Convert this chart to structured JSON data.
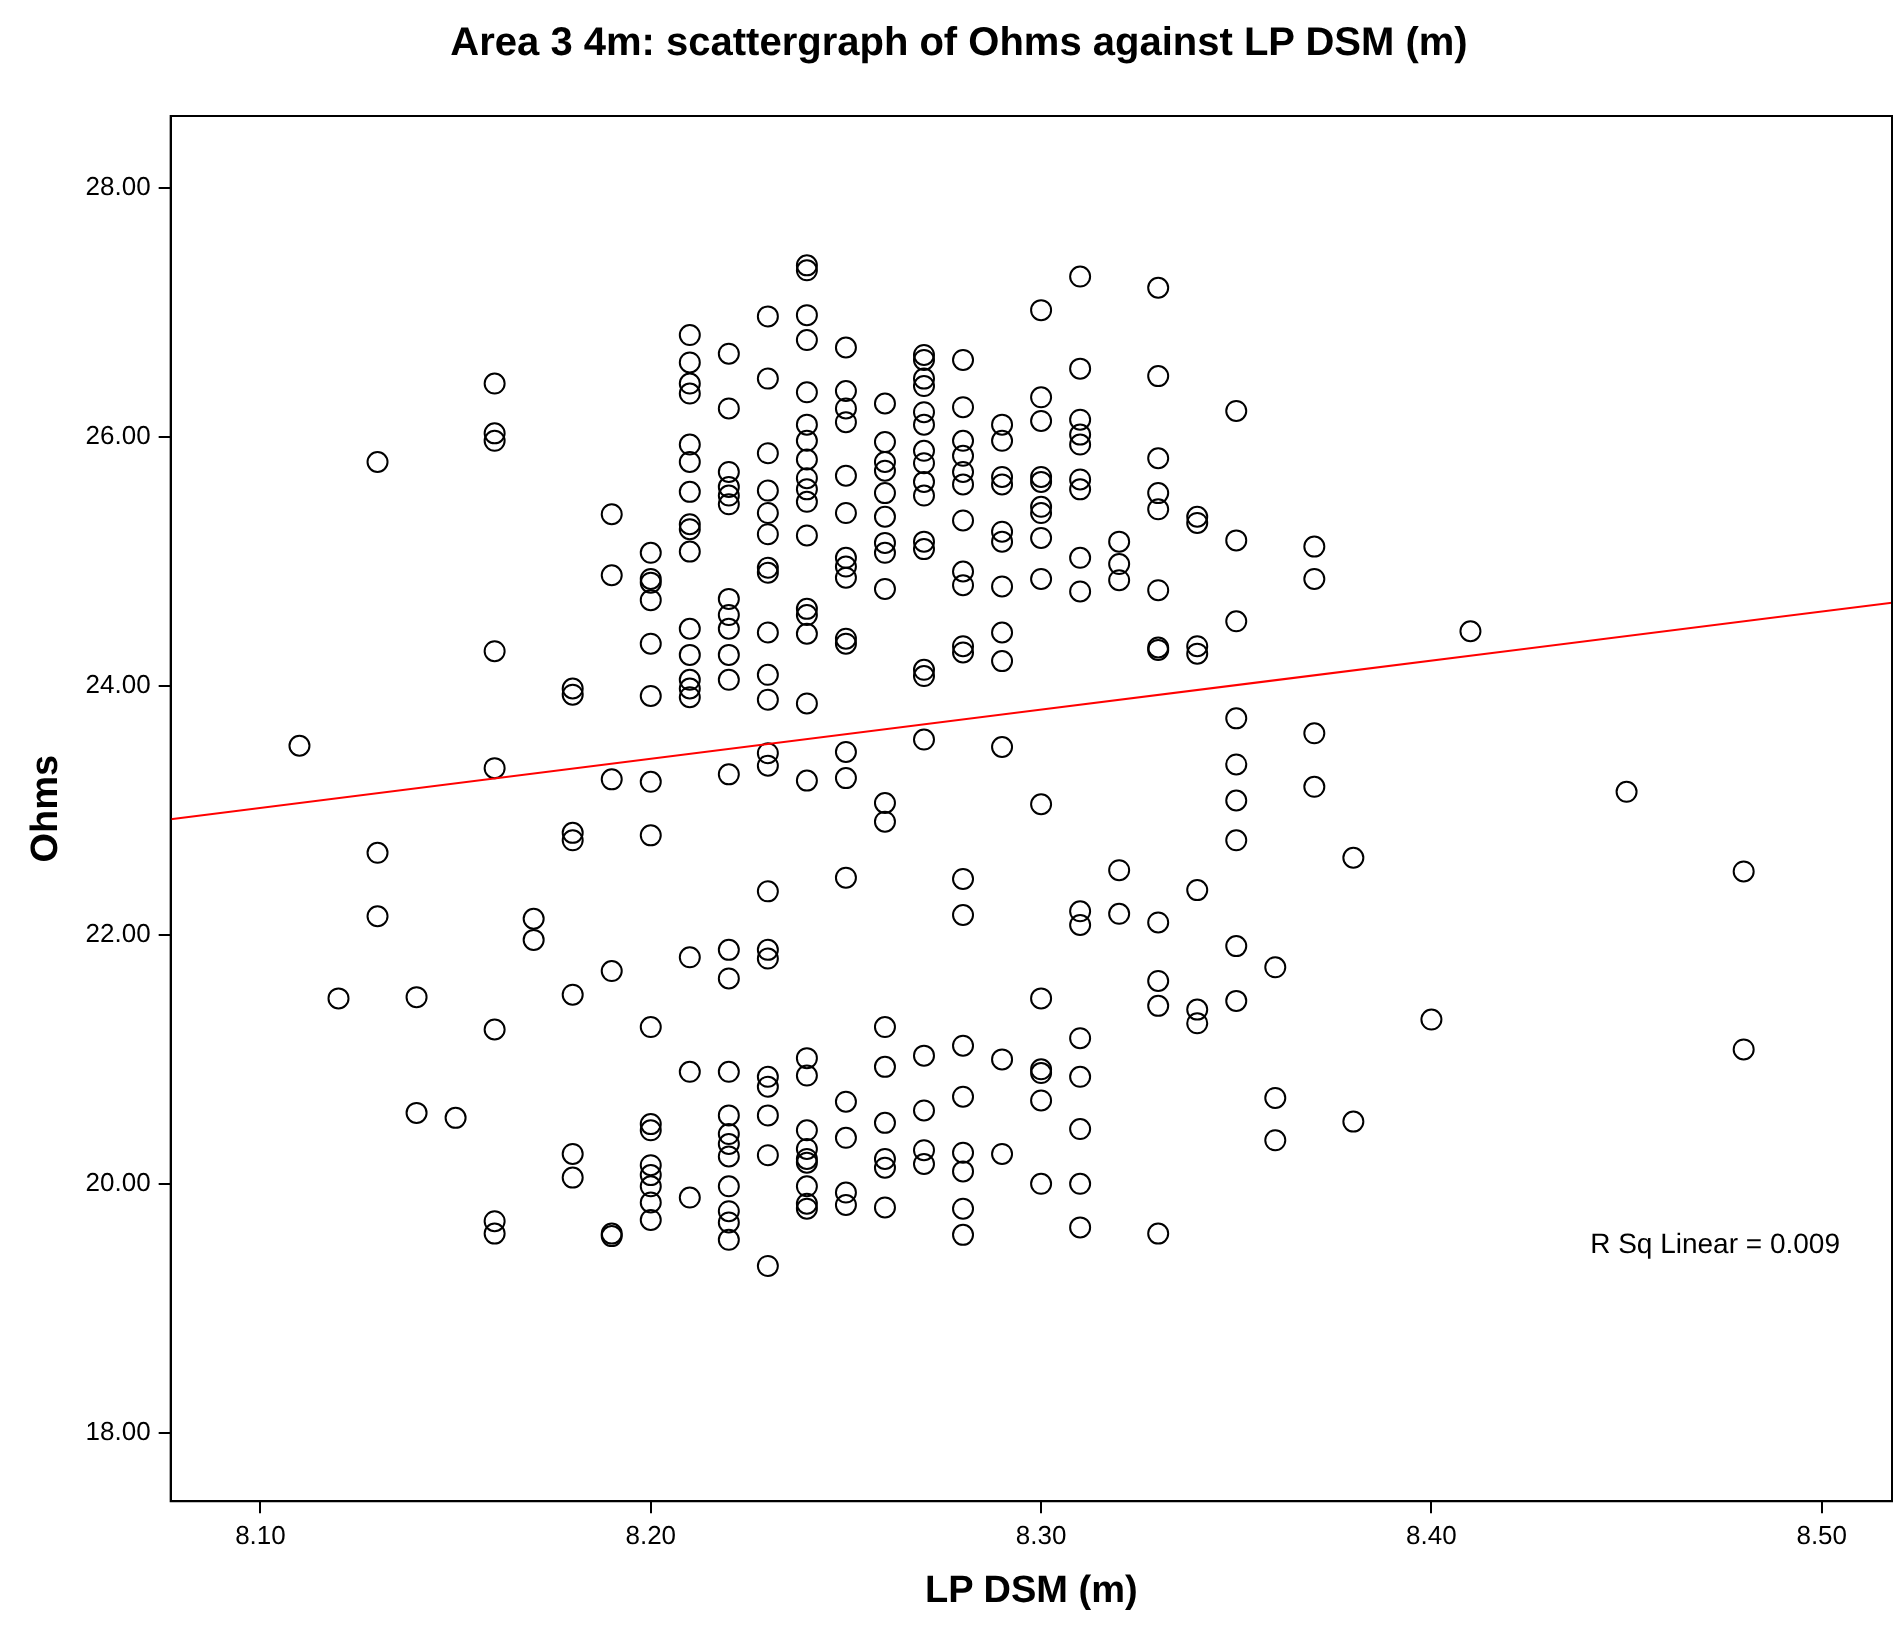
{
  "chart_data": {
    "type": "scatter",
    "title": "Area 3 4m: scattergraph of Ohms against LP DSM (m)",
    "xlabel": "LP DSM (m)",
    "ylabel": "Ohms",
    "xlim": [
      8.077,
      8.518
    ],
    "xticks": [
      {
        "value": 8.1,
        "label": "8.10"
      },
      {
        "value": 8.2,
        "label": "8.20"
      },
      {
        "value": 8.3,
        "label": "8.30"
      },
      {
        "value": 8.4,
        "label": "8.40"
      },
      {
        "value": 8.5,
        "label": "8.50"
      }
    ],
    "ylim": [
      17.45,
      28.58
    ],
    "yticks": [
      {
        "value": 18,
        "label": "18.00"
      },
      {
        "value": 20,
        "label": "20.00"
      },
      {
        "value": 22,
        "label": "22.00"
      },
      {
        "value": 24,
        "label": "24.00"
      },
      {
        "value": 26,
        "label": "26.00"
      },
      {
        "value": 28,
        "label": "28.00"
      }
    ],
    "grid": false,
    "legend": false,
    "marker": "circle",
    "annotations": [
      "R Sq Linear = 0.009"
    ],
    "series": [
      {
        "type": "scatter",
        "color": "#000000",
        "x": [
          8.11,
          8.12,
          8.13,
          8.13,
          8.13,
          8.14,
          8.14,
          8.15,
          8.16,
          8.16,
          8.16,
          8.16,
          8.16,
          8.16,
          8.16,
          8.16,
          8.17,
          8.17,
          8.18,
          8.18,
          8.18,
          8.18,
          8.18,
          8.18,
          8.18,
          8.19,
          8.19,
          8.19,
          8.19,
          8.19,
          8.19,
          8.2,
          8.2,
          8.2,
          8.2,
          8.2,
          8.2,
          8.2,
          8.2,
          8.2,
          8.2,
          8.2,
          8.2,
          8.2,
          8.2,
          8.2,
          8.2,
          8.21,
          8.21,
          8.21,
          8.21,
          8.21,
          8.21,
          8.21,
          8.21,
          8.21,
          8.21,
          8.21,
          8.21,
          8.21,
          8.21,
          8.21,
          8.21,
          8.21,
          8.21,
          8.22,
          8.22,
          8.22,
          8.22,
          8.22,
          8.22,
          8.22,
          8.22,
          8.22,
          8.22,
          8.22,
          8.22,
          8.22,
          8.22,
          8.22,
          8.22,
          8.22,
          8.22,
          8.22,
          8.22,
          8.22,
          8.22,
          8.22,
          8.23,
          8.23,
          8.23,
          8.23,
          8.23,
          8.23,
          8.23,
          8.23,
          8.23,
          8.23,
          8.23,
          8.23,
          8.23,
          8.23,
          8.23,
          8.23,
          8.23,
          8.23,
          8.23,
          8.23,
          8.23,
          8.24,
          8.24,
          8.24,
          8.24,
          8.24,
          8.24,
          8.24,
          8.24,
          8.24,
          8.24,
          8.24,
          8.24,
          8.24,
          8.24,
          8.24,
          8.24,
          8.24,
          8.24,
          8.24,
          8.24,
          8.24,
          8.24,
          8.24,
          8.24,
          8.24,
          8.24,
          8.25,
          8.25,
          8.25,
          8.25,
          8.25,
          8.25,
          8.25,
          8.25,
          8.25,
          8.25,
          8.25,
          8.25,
          8.25,
          8.25,
          8.25,
          8.25,
          8.25,
          8.25,
          8.26,
          8.26,
          8.26,
          8.26,
          8.26,
          8.26,
          8.26,
          8.26,
          8.26,
          8.26,
          8.26,
          8.26,
          8.26,
          8.26,
          8.26,
          8.26,
          8.26,
          8.27,
          8.27,
          8.27,
          8.27,
          8.27,
          8.27,
          8.27,
          8.27,
          8.27,
          8.27,
          8.27,
          8.27,
          8.27,
          8.27,
          8.27,
          8.27,
          8.27,
          8.27,
          8.27,
          8.28,
          8.28,
          8.28,
          8.28,
          8.28,
          8.28,
          8.28,
          8.28,
          8.28,
          8.28,
          8.28,
          8.28,
          8.28,
          8.28,
          8.28,
          8.28,
          8.28,
          8.28,
          8.28,
          8.29,
          8.29,
          8.29,
          8.29,
          8.29,
          8.29,
          8.29,
          8.29,
          8.29,
          8.29,
          8.29,
          8.29,
          8.3,
          8.3,
          8.3,
          8.3,
          8.3,
          8.3,
          8.3,
          8.3,
          8.3,
          8.3,
          8.3,
          8.3,
          8.3,
          8.3,
          8.3,
          8.31,
          8.31,
          8.31,
          8.31,
          8.31,
          8.31,
          8.31,
          8.31,
          8.31,
          8.31,
          8.31,
          8.31,
          8.31,
          8.31,
          8.31,
          8.31,
          8.32,
          8.32,
          8.32,
          8.32,
          8.32,
          8.33,
          8.33,
          8.33,
          8.33,
          8.33,
          8.33,
          8.33,
          8.33,
          8.33,
          8.33,
          8.33,
          8.33,
          8.34,
          8.34,
          8.34,
          8.34,
          8.34,
          8.34,
          8.34,
          8.35,
          8.35,
          8.35,
          8.35,
          8.35,
          8.35,
          8.35,
          8.35,
          8.35,
          8.36,
          8.36,
          8.36,
          8.37,
          8.37,
          8.37,
          8.37,
          8.38,
          8.38,
          8.4,
          8.41,
          8.45,
          8.48,
          8.48
        ],
        "values": [
          23.52,
          21.49,
          25.8,
          22.66,
          22.15,
          21.5,
          20.57,
          20.53,
          26.43,
          26.03,
          25.97,
          24.28,
          23.34,
          21.24,
          19.7,
          19.6,
          22.13,
          21.96,
          23.98,
          23.93,
          22.82,
          22.76,
          21.52,
          20.24,
          20.05,
          25.38,
          24.89,
          23.25,
          21.71,
          19.6,
          19.58,
          25.07,
          24.86,
          24.83,
          24.69,
          24.34,
          23.92,
          23.23,
          22.8,
          21.26,
          20.48,
          20.43,
          20.15,
          20.07,
          19.98,
          19.85,
          19.71,
          26.82,
          26.6,
          26.43,
          26.35,
          25.94,
          25.8,
          25.56,
          25.3,
          25.26,
          25.08,
          24.46,
          24.25,
          24.05,
          23.98,
          23.91,
          21.82,
          20.9,
          19.89,
          26.67,
          26.23,
          25.72,
          25.6,
          25.53,
          25.46,
          24.7,
          24.57,
          24.46,
          24.25,
          24.05,
          23.29,
          21.88,
          21.65,
          20.9,
          20.55,
          20.4,
          20.32,
          20.22,
          19.98,
          19.78,
          19.69,
          19.55,
          26.97,
          26.47,
          25.87,
          25.57,
          25.39,
          25.22,
          24.95,
          24.91,
          24.43,
          24.09,
          23.89,
          23.46,
          23.36,
          22.35,
          21.88,
          21.81,
          20.86,
          20.78,
          20.55,
          20.23,
          19.34,
          27.38,
          27.34,
          26.98,
          26.78,
          26.36,
          26.1,
          25.97,
          25.82,
          25.67,
          25.58,
          25.48,
          25.21,
          24.62,
          24.57,
          24.42,
          23.86,
          23.24,
          21.01,
          20.87,
          20.43,
          20.28,
          20.2,
          20.17,
          19.98,
          19.84,
          19.8,
          26.72,
          26.37,
          26.23,
          26.12,
          25.69,
          25.39,
          25.03,
          24.96,
          24.87,
          24.38,
          24.34,
          23.47,
          23.26,
          22.46,
          20.66,
          20.37,
          19.93,
          19.83,
          26.27,
          25.96,
          25.8,
          25.73,
          25.55,
          25.36,
          25.15,
          25.07,
          24.78,
          23.06,
          22.91,
          21.26,
          20.94,
          20.49,
          20.2,
          20.13,
          19.81,
          26.66,
          26.62,
          26.47,
          26.41,
          26.2,
          26.1,
          25.89,
          25.79,
          25.64,
          25.53,
          25.16,
          25.1,
          24.13,
          24.08,
          23.57,
          21.03,
          20.59,
          20.27,
          20.16,
          26.62,
          26.24,
          25.97,
          25.85,
          25.72,
          25.62,
          25.33,
          24.92,
          24.81,
          24.32,
          24.27,
          22.45,
          22.16,
          21.11,
          20.7,
          20.25,
          20.1,
          19.8,
          19.59,
          26.1,
          25.97,
          25.68,
          25.62,
          25.24,
          25.16,
          24.8,
          24.43,
          24.2,
          23.51,
          21.0,
          20.24,
          27.02,
          26.32,
          26.13,
          25.68,
          25.64,
          25.44,
          25.39,
          25.19,
          24.86,
          23.05,
          21.49,
          20.92,
          20.89,
          20.67,
          20.0,
          27.29,
          26.55,
          26.14,
          26.02,
          25.94,
          25.66,
          25.58,
          25.03,
          24.76,
          22.19,
          22.08,
          21.17,
          20.86,
          20.44,
          20.0,
          19.65,
          25.16,
          24.98,
          24.85,
          22.52,
          22.17,
          27.2,
          26.49,
          25.83,
          25.55,
          25.42,
          24.77,
          24.31,
          24.29,
          22.1,
          21.63,
          21.43,
          19.6,
          25.36,
          25.31,
          24.32,
          24.26,
          22.36,
          21.4,
          21.29,
          26.21,
          25.17,
          24.52,
          23.74,
          23.37,
          23.08,
          22.76,
          21.91,
          21.47,
          21.74,
          20.69,
          20.35,
          25.12,
          24.86,
          23.62,
          23.19,
          22.62,
          20.5,
          21.32,
          24.44,
          23.15,
          22.51,
          21.08
        ]
      },
      {
        "type": "line",
        "color": "#ff0000",
        "marker": "none",
        "line_style": "solid",
        "x": [
          8.077,
          8.518
        ],
        "values": [
          22.93,
          24.67
        ]
      }
    ]
  }
}
